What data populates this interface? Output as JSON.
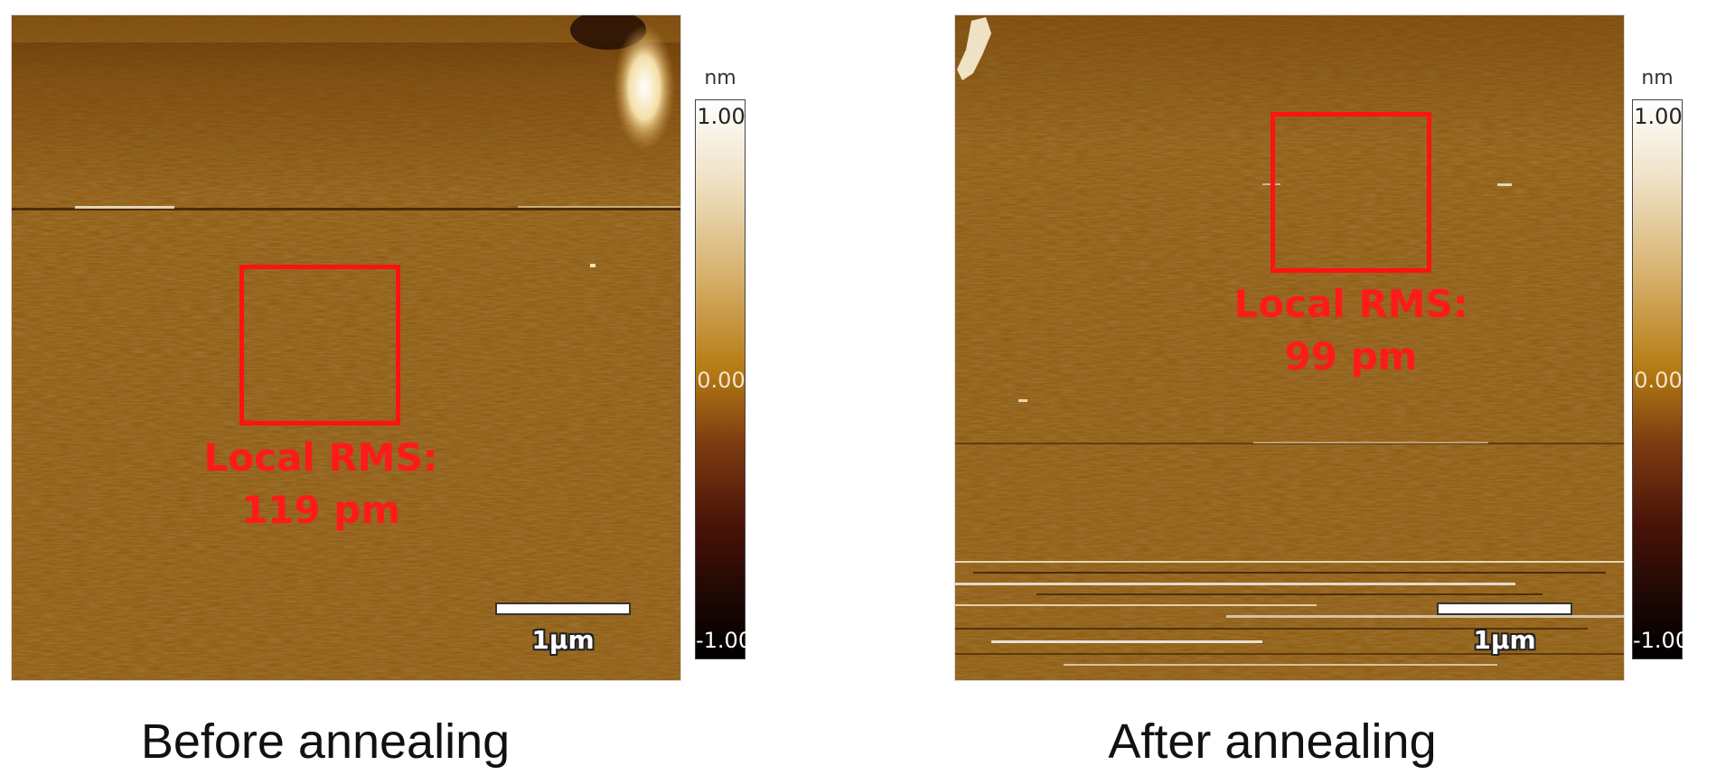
{
  "panels": [
    {
      "caption": "Before annealing",
      "roi_label_line1": "Local RMS:",
      "roi_label_line2": "119 pm",
      "scale_bar_label": "1μm",
      "colorbar": {
        "unit": "nm",
        "max": "1.00",
        "mid": "0.00",
        "min": "-1.00"
      }
    },
    {
      "caption": "After annealing",
      "roi_label_line1": "Local RMS:",
      "roi_label_line2": "99 pm",
      "scale_bar_label": "1μm",
      "colorbar": {
        "unit": "nm",
        "max": "1.00",
        "mid": "0.00",
        "min": "-1.00"
      }
    }
  ],
  "colors": {
    "surface": "#8e5a12",
    "roi": "#ff1212",
    "colormap": [
      "#000000",
      "#4a1308",
      "#7b3a10",
      "#b67c14",
      "#d9b574",
      "#ffffff"
    ]
  }
}
